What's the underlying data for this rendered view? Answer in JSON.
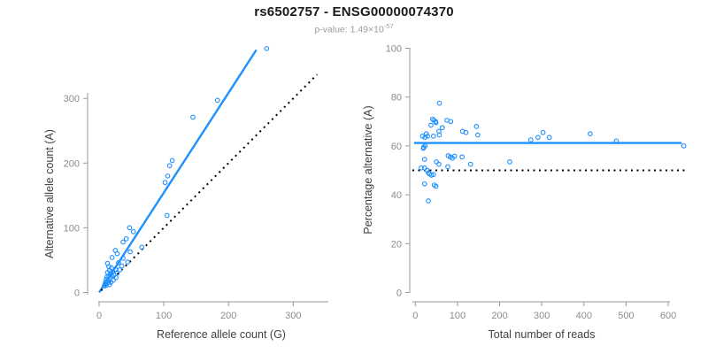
{
  "header": {
    "title": "rs6502757 - ENSG00000074370",
    "pvalue_prefix": "p-value: 1.49×10",
    "pvalue_exponent": "-57"
  },
  "colors": {
    "accent": "#1E90FF",
    "axis_line": "#9a9a9a",
    "tick_label": "#8c8c8c",
    "axis_title": "#404040",
    "dotted_line": "#000000"
  },
  "chart_data": [
    {
      "type": "scatter",
      "name": "allele-counts-scatter",
      "xlabel": "Reference allele count (G)",
      "ylabel": "Alternative allele count (A)",
      "xticks": [
        0,
        100,
        200,
        300
      ],
      "yticks": [
        0,
        100,
        200,
        300
      ],
      "xlim": [
        0,
        350
      ],
      "ylim": [
        0,
        385
      ],
      "grid": false,
      "lines": [
        {
          "style": "solid",
          "role": "regression-line",
          "x1": 0,
          "y1": 0,
          "x2": 243,
          "y2": 375
        },
        {
          "style": "dotted",
          "role": "identity-line",
          "x1": 3,
          "y1": 3,
          "x2": 337,
          "y2": 337
        }
      ],
      "points": [
        [
          259,
          377
        ],
        [
          183,
          297
        ],
        [
          145,
          271
        ],
        [
          113,
          204
        ],
        [
          109,
          196
        ],
        [
          106,
          180
        ],
        [
          102,
          170
        ],
        [
          105,
          119
        ],
        [
          66,
          70
        ],
        [
          47,
          100
        ],
        [
          53,
          94
        ],
        [
          42,
          83
        ],
        [
          37,
          78
        ],
        [
          48,
          63
        ],
        [
          44,
          47
        ],
        [
          37,
          53
        ],
        [
          35,
          41
        ],
        [
          25,
          65
        ],
        [
          28,
          60
        ],
        [
          20,
          54
        ],
        [
          13,
          45
        ],
        [
          15,
          40
        ],
        [
          8,
          10
        ],
        [
          9,
          13
        ],
        [
          10,
          16
        ],
        [
          11,
          11
        ],
        [
          11,
          20
        ],
        [
          12,
          24
        ],
        [
          13,
          15
        ],
        [
          13,
          31
        ],
        [
          14,
          19
        ],
        [
          15,
          26
        ],
        [
          16,
          12
        ],
        [
          16,
          34
        ],
        [
          17,
          22
        ],
        [
          18,
          16
        ],
        [
          18,
          29
        ],
        [
          19,
          38
        ],
        [
          20,
          25
        ],
        [
          21,
          32
        ],
        [
          22,
          19
        ],
        [
          23,
          27
        ],
        [
          25,
          36
        ],
        [
          26,
          23
        ],
        [
          28,
          30
        ],
        [
          30,
          46
        ],
        [
          32,
          35
        ]
      ]
    },
    {
      "type": "scatter",
      "name": "percentage-vs-reads-scatter",
      "xlabel": "Total number of reads",
      "ylabel": "Percentage alternative (A)",
      "xticks": [
        0,
        100,
        200,
        300,
        400,
        500,
        600
      ],
      "yticks": [
        0,
        20,
        40,
        60,
        80,
        100
      ],
      "xlim": [
        0,
        650
      ],
      "ylim": [
        0,
        100
      ],
      "grid": false,
      "lines": [
        {
          "style": "solid",
          "role": "mean-percentage-line",
          "x1": -3,
          "y1": 61.2,
          "x2": 632,
          "y2": 61.2
        },
        {
          "style": "dotted",
          "role": "fifty-percent-line",
          "x1": -7,
          "y1": 50,
          "x2": 645,
          "y2": 50
        }
      ],
      "points": [
        [
          57,
          77.5
        ],
        [
          41,
          71
        ],
        [
          44,
          70.5
        ],
        [
          48,
          70
        ],
        [
          49,
          69.5
        ],
        [
          37,
          68.5
        ],
        [
          75,
          70.5
        ],
        [
          84,
          70
        ],
        [
          64,
          67.5
        ],
        [
          56,
          66
        ],
        [
          26,
          65
        ],
        [
          17,
          64
        ],
        [
          23,
          63.5
        ],
        [
          29,
          64
        ],
        [
          43,
          64
        ],
        [
          57,
          64.5
        ],
        [
          145,
          68
        ],
        [
          112,
          66
        ],
        [
          120,
          65.5
        ],
        [
          148,
          64.5
        ],
        [
          20,
          59.5
        ],
        [
          23,
          60
        ],
        [
          19,
          59
        ],
        [
          78,
          56
        ],
        [
          83,
          55.5
        ],
        [
          88,
          55
        ],
        [
          93,
          55.8
        ],
        [
          111,
          55.5
        ],
        [
          22,
          54.5
        ],
        [
          50,
          53.5
        ],
        [
          56,
          52.5
        ],
        [
          77,
          51.5
        ],
        [
          131,
          52.5
        ],
        [
          14,
          51
        ],
        [
          22,
          51
        ],
        [
          28,
          50
        ],
        [
          31,
          49
        ],
        [
          34,
          48.5
        ],
        [
          38,
          48
        ],
        [
          43,
          48.3
        ],
        [
          22,
          44.5
        ],
        [
          45,
          44
        ],
        [
          49,
          43.5
        ],
        [
          31,
          37.5
        ],
        [
          224,
          53.5
        ],
        [
          274,
          62.5
        ],
        [
          291,
          63.5
        ],
        [
          303,
          65.5
        ],
        [
          318,
          63.5
        ],
        [
          415,
          65
        ],
        [
          477,
          62
        ],
        [
          637,
          60
        ]
      ]
    }
  ]
}
